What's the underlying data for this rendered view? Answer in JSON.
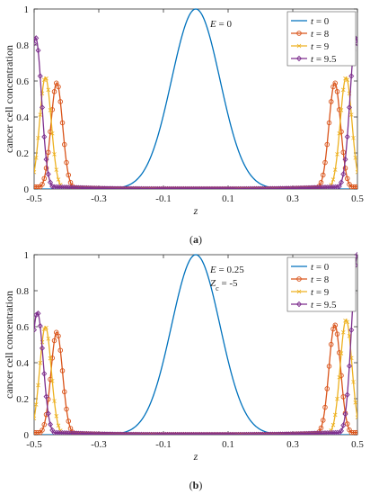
{
  "chart_data": [
    {
      "type": "line",
      "caption": "(a)",
      "xlabel": "z",
      "ylabel": "cancer cell concentration",
      "xlim": [
        -0.5,
        0.5
      ],
      "ylim": [
        0,
        1
      ],
      "xticks": [
        "-0.5",
        "-0.3",
        "-0.1",
        "0.1",
        "0.3",
        "0.5"
      ],
      "yticks": [
        "0",
        "0.2",
        "0.4",
        "0.6",
        "0.8",
        "1"
      ],
      "annotation": [
        {
          "var": "E",
          "text": " = 0"
        }
      ],
      "legend_position": "top-right",
      "series": [
        {
          "name": "t = 0",
          "legend_var": "t",
          "legend_val": " = 0",
          "color": "#0072BD",
          "marker": "none",
          "shape": "gaussian",
          "center": 0.0,
          "peak": 1.0,
          "sigma": 0.075
        },
        {
          "name": "t = 8",
          "legend_var": "t",
          "legend_val": " = 8",
          "color": "#D95319",
          "marker": "circle",
          "shape": "twin_peaks",
          "peaks": [
            {
              "x": -0.43,
              "y": 0.59
            },
            {
              "x": 0.43,
              "y": 0.59
            }
          ],
          "width": 0.018,
          "baseline": 0.0
        },
        {
          "name": "t = 9",
          "legend_var": "t",
          "legend_val": " = 9",
          "color": "#EDB120",
          "marker": "cross",
          "shape": "twin_peaks",
          "peaks": [
            {
              "x": -0.465,
              "y": 0.62
            },
            {
              "x": 0.465,
              "y": 0.62
            }
          ],
          "width": 0.018,
          "baseline": 0.0
        },
        {
          "name": "t = 9.5",
          "legend_var": "t",
          "legend_val": " = 9.5",
          "color": "#7E2F8E",
          "marker": "diamond",
          "shape": "twin_peaks",
          "peaks": [
            {
              "x": -0.495,
              "y": 0.84
            },
            {
              "x": 0.495,
              "y": 0.84
            }
          ],
          "width": 0.018,
          "baseline": 0.0
        }
      ]
    },
    {
      "type": "line",
      "caption": "(b)",
      "xlabel": "z",
      "ylabel": "cancer cell concentration",
      "xlim": [
        -0.5,
        0.5
      ],
      "ylim": [
        0,
        1
      ],
      "xticks": [
        "-0.5",
        "-0.3",
        "-0.1",
        "0.1",
        "0.3",
        "0.5"
      ],
      "yticks": [
        "0",
        "0.2",
        "0.4",
        "0.6",
        "0.8",
        "1"
      ],
      "annotation": [
        {
          "var": "E",
          "text": " = 0.25"
        },
        {
          "var": "Z",
          "sub": "c",
          "text": " = -5"
        }
      ],
      "legend_position": "top-right",
      "series": [
        {
          "name": "t = 0",
          "legend_var": "t",
          "legend_val": " = 0",
          "color": "#0072BD",
          "marker": "none",
          "shape": "gaussian",
          "center": 0.0,
          "peak": 1.0,
          "sigma": 0.075
        },
        {
          "name": "t = 8",
          "legend_var": "t",
          "legend_val": " = 8",
          "color": "#D95319",
          "marker": "circle",
          "shape": "twin_peaks",
          "peaks": [
            {
              "x": -0.43,
              "y": 0.57
            },
            {
              "x": 0.43,
              "y": 0.61
            }
          ],
          "width": 0.018,
          "baseline": 0.0
        },
        {
          "name": "t = 9",
          "legend_var": "t",
          "legend_val": " = 9",
          "color": "#EDB120",
          "marker": "cross",
          "shape": "twin_peaks",
          "peaks": [
            {
              "x": -0.465,
              "y": 0.6
            },
            {
              "x": 0.465,
              "y": 0.64
            }
          ],
          "width": 0.018,
          "baseline": 0.0
        },
        {
          "name": "t = 9.5",
          "legend_var": "t",
          "legend_val": " = 9.5",
          "color": "#7E2F8E",
          "marker": "diamond",
          "shape": "twin_peaks",
          "peaks": [
            {
              "x": -0.49,
              "y": 0.68
            },
            {
              "x": 0.5,
              "y": 1.0
            }
          ],
          "width": 0.018,
          "baseline": 0.0
        }
      ]
    }
  ]
}
